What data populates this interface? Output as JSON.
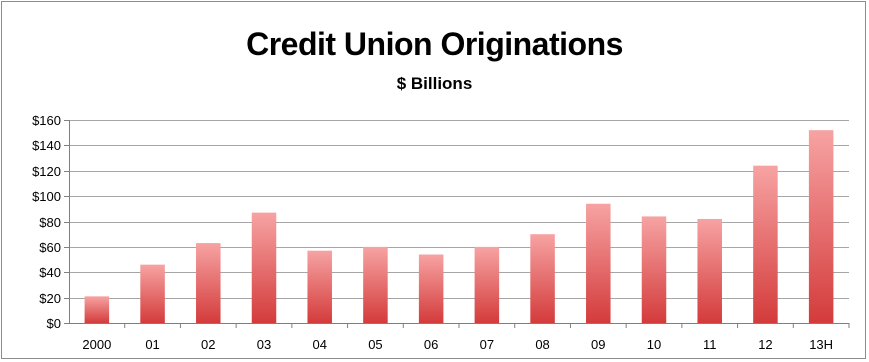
{
  "chart_data": {
    "type": "bar",
    "title": "Credit Union Originations",
    "subtitle": "$ Billions",
    "xlabel": "",
    "ylabel": "",
    "categories": [
      "2000",
      "01",
      "02",
      "03",
      "04",
      "05",
      "06",
      "07",
      "08",
      "09",
      "10",
      "11",
      "12",
      "13H"
    ],
    "values": [
      21,
      46,
      63,
      87,
      57,
      60,
      54,
      60,
      70,
      94,
      84,
      82,
      124,
      152
    ],
    "ylim": [
      0,
      160
    ],
    "yticks": [
      0,
      20,
      40,
      60,
      80,
      100,
      120,
      140,
      160
    ],
    "ytick_labels": [
      "$0",
      "$20",
      "$40",
      "$60",
      "$80",
      "$100",
      "$120",
      "$140",
      "$160"
    ],
    "grid": true,
    "legend": "none",
    "colors": {
      "bar_top": "#f7a3a3",
      "bar_bottom": "#d43b3b",
      "grid": "#a6a6a6",
      "axis": "#7f7f7f"
    }
  }
}
